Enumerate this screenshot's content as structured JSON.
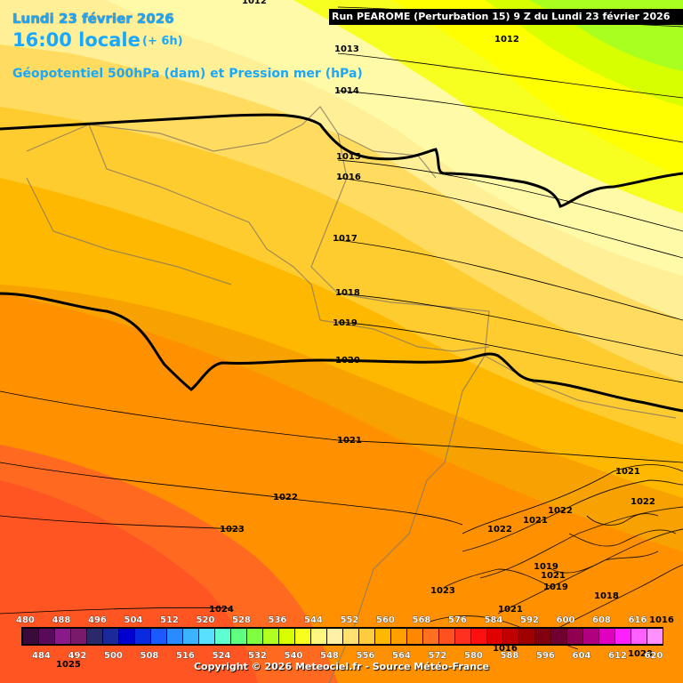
{
  "header": {
    "date": "Lundi 23 février 2026",
    "time": "16:00 locale",
    "offset": "(+ 6h)",
    "parameter": "Géopotentiel 500hPa (dam) et Pression mer (hPa)",
    "run_info": "Run PEAROME (Perturbation 15) 9 Z du Lundi 23 février 2026"
  },
  "isobars": [
    "1012",
    "1012",
    "1013",
    "1014",
    "1015",
    "1016",
    "1017",
    "1018",
    "1019",
    "1020",
    "1021",
    "1021",
    "1021",
    "1021",
    "1022",
    "1022",
    "1022",
    "1022",
    "1023",
    "1023",
    "1024",
    "1025",
    "1021",
    "1020",
    "1019",
    "1018",
    "1019",
    "1016",
    "1016"
  ],
  "legend": {
    "top_labels": [
      "480",
      "488",
      "496",
      "504",
      "512",
      "520",
      "528",
      "536",
      "544",
      "552",
      "560",
      "568",
      "576",
      "584",
      "592",
      "600",
      "608",
      "616"
    ],
    "bottom_labels": [
      "484",
      "492",
      "500",
      "508",
      "516",
      "524",
      "532",
      "540",
      "548",
      "556",
      "564",
      "572",
      "580",
      "588",
      "596",
      "604",
      "612",
      "620"
    ],
    "colors": [
      "#3a0a3a",
      "#5a0a5a",
      "#8a1a8a",
      "#7a1a6a",
      "#2a2a6a",
      "#1a2a9a",
      "#0000d0",
      "#0a2ae0",
      "#1a5aff",
      "#2a8aff",
      "#3ab4ff",
      "#5ae0ff",
      "#60ffd0",
      "#60ff80",
      "#80ff40",
      "#b0ff20",
      "#d8ff00",
      "#f8ff20",
      "#fff880",
      "#fff2a8",
      "#ffe070",
      "#ffcc40",
      "#ffb800",
      "#ffa000",
      "#ff8800",
      "#ff7020",
      "#ff5020",
      "#ff3020",
      "#ff1010",
      "#e00000",
      "#c00000",
      "#a00000",
      "#800010",
      "#700030",
      "#900050",
      "#b00080",
      "#e000c0",
      "#ff20ff",
      "#ff60ff",
      "#ff90ff"
    ]
  },
  "copyright": "Copyright © 2026 Meteociel.fr - Source Météo-France"
}
